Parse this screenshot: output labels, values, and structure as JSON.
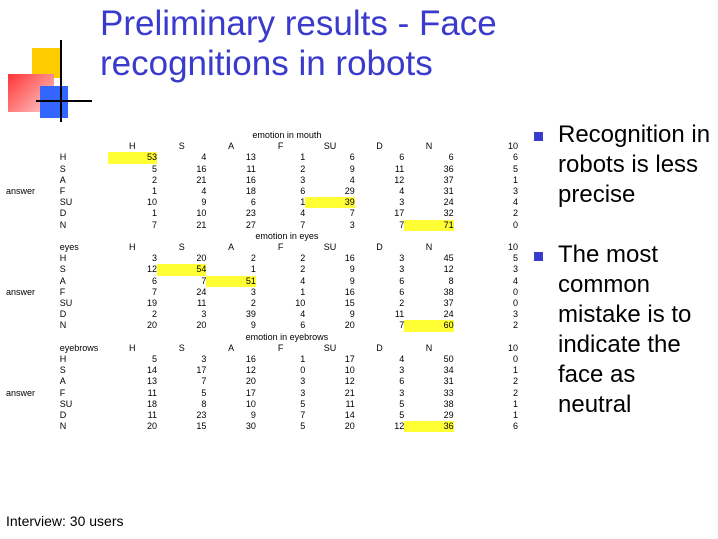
{
  "title": "Preliminary results - Face recognitions in robots",
  "decoration": {
    "colors": {
      "yellow": "#ffcc00",
      "red": "#ff4d4d",
      "blue": "#3366ff",
      "line": "#000000"
    }
  },
  "tables": [
    {
      "caption": "emotion in mouth",
      "header": [
        "",
        "H",
        "S",
        "A",
        "F",
        "SU",
        "D",
        "N",
        "10"
      ],
      "answer_label": "answer",
      "answer_row": 3,
      "rows": [
        {
          "label": "H",
          "values": [
            "53",
            "4",
            "13",
            "1",
            "6",
            "6",
            "6",
            "6"
          ],
          "hl": 0
        },
        {
          "label": "S",
          "values": [
            "5",
            "16",
            "11",
            "2",
            "9",
            "11",
            "36",
            "5"
          ],
          "hl": -1
        },
        {
          "label": "A",
          "values": [
            "2",
            "21",
            "16",
            "3",
            "4",
            "12",
            "37",
            "1"
          ],
          "hl": -1
        },
        {
          "label": "F",
          "values": [
            "1",
            "4",
            "18",
            "6",
            "29",
            "4",
            "31",
            "3"
          ],
          "hl": -1
        },
        {
          "label": "SU",
          "values": [
            "10",
            "9",
            "6",
            "1",
            "39",
            "3",
            "24",
            "4"
          ],
          "hl": 4
        },
        {
          "label": "D",
          "values": [
            "1",
            "10",
            "23",
            "4",
            "7",
            "17",
            "32",
            "2"
          ],
          "hl": -1
        },
        {
          "label": "N",
          "values": [
            "7",
            "21",
            "27",
            "7",
            "3",
            "7",
            "71",
            "0"
          ],
          "hl": 6
        }
      ]
    },
    {
      "caption": "emotion in eyes",
      "header": [
        "eyes",
        "H",
        "S",
        "A",
        "F",
        "SU",
        "D",
        "N",
        "10"
      ],
      "answer_label": "answer",
      "answer_row": 3,
      "rows": [
        {
          "label": "H",
          "values": [
            "3",
            "20",
            "2",
            "2",
            "16",
            "3",
            "45",
            "5"
          ],
          "hl": -1
        },
        {
          "label": "S",
          "values": [
            "12",
            "54",
            "1",
            "2",
            "9",
            "3",
            "12",
            "3"
          ],
          "hl": 1
        },
        {
          "label": "A",
          "values": [
            "6",
            "7",
            "51",
            "4",
            "9",
            "6",
            "8",
            "4"
          ],
          "hl": 2
        },
        {
          "label": "F",
          "values": [
            "7",
            "24",
            "3",
            "1",
            "16",
            "6",
            "38",
            "0"
          ],
          "hl": -1
        },
        {
          "label": "SU",
          "values": [
            "19",
            "11",
            "2",
            "10",
            "15",
            "2",
            "37",
            "0"
          ],
          "hl": -1
        },
        {
          "label": "D",
          "values": [
            "2",
            "3",
            "39",
            "4",
            "9",
            "11",
            "24",
            "3"
          ],
          "hl": -1
        },
        {
          "label": "N",
          "values": [
            "20",
            "20",
            "9",
            "6",
            "20",
            "7",
            "60",
            "2"
          ],
          "hl": 6
        }
      ]
    },
    {
      "caption": "emotion in eyebrows",
      "header": [
        "eyebrows",
        "H",
        "S",
        "A",
        "F",
        "SU",
        "D",
        "N",
        "10"
      ],
      "answer_label": "answer",
      "answer_row": 3,
      "rows": [
        {
          "label": "H",
          "values": [
            "5",
            "3",
            "16",
            "1",
            "17",
            "4",
            "50",
            "0"
          ],
          "hl": -1
        },
        {
          "label": "S",
          "values": [
            "14",
            "17",
            "12",
            "0",
            "10",
            "3",
            "34",
            "1"
          ],
          "hl": -1
        },
        {
          "label": "A",
          "values": [
            "13",
            "7",
            "20",
            "3",
            "12",
            "6",
            "31",
            "2"
          ],
          "hl": -1
        },
        {
          "label": "F",
          "values": [
            "11",
            "5",
            "17",
            "3",
            "21",
            "3",
            "33",
            "2"
          ],
          "hl": -1
        },
        {
          "label": "SU",
          "values": [
            "18",
            "8",
            "10",
            "5",
            "11",
            "5",
            "38",
            "1"
          ],
          "hl": -1
        },
        {
          "label": "D",
          "values": [
            "11",
            "23",
            "9",
            "7",
            "14",
            "5",
            "29",
            "1"
          ],
          "hl": -1
        },
        {
          "label": "N",
          "values": [
            "20",
            "15",
            "30",
            "5",
            "20",
            "12",
            "36",
            "6"
          ],
          "hl": 6
        }
      ]
    }
  ],
  "bullets": [
    "Recognition in robots is less precise",
    "The most common mistake is to indicate the face as neutral"
  ],
  "footer": "Interview: 30 users",
  "highlight_color": "#ffff33",
  "accent_color": "#3a3acc"
}
